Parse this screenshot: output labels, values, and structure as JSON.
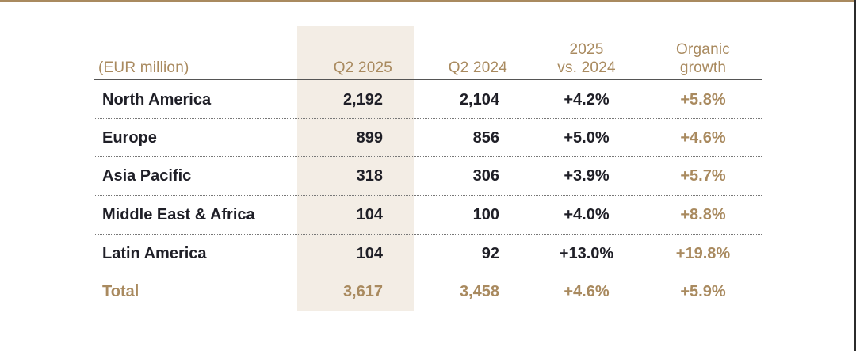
{
  "colors": {
    "gold": "#a98a5f",
    "highlight": "#f3ede5",
    "text": "#1f1f27"
  },
  "headers": {
    "unit": "(EUR million)",
    "col1": "Q2 2025",
    "col2": "Q2 2024",
    "col3_line1": "2025",
    "col3_line2": "vs. 2024",
    "col4_line1": "Organic",
    "col4_line2": "growth"
  },
  "rows": [
    {
      "region": "North America",
      "q2_2025": "2,192",
      "q2_2024": "2,104",
      "vs": "+4.2%",
      "organic": "+5.8%"
    },
    {
      "region": "Europe",
      "q2_2025": "899",
      "q2_2024": "856",
      "vs": "+5.0%",
      "organic": "+4.6%"
    },
    {
      "region": "Asia Pacific",
      "q2_2025": "318",
      "q2_2024": "306",
      "vs": "+3.9%",
      "organic": "+5.7%"
    },
    {
      "region": "Middle East & Africa",
      "q2_2025": "104",
      "q2_2024": "100",
      "vs": "+4.0%",
      "organic": "+8.8%"
    },
    {
      "region": "Latin America",
      "q2_2025": "104",
      "q2_2024": "92",
      "vs": "+13.0%",
      "organic": "+19.8%"
    }
  ],
  "total": {
    "region": "Total",
    "q2_2025": "3,617",
    "q2_2024": "3,458",
    "vs": "+4.6%",
    "organic": "+5.9%"
  }
}
